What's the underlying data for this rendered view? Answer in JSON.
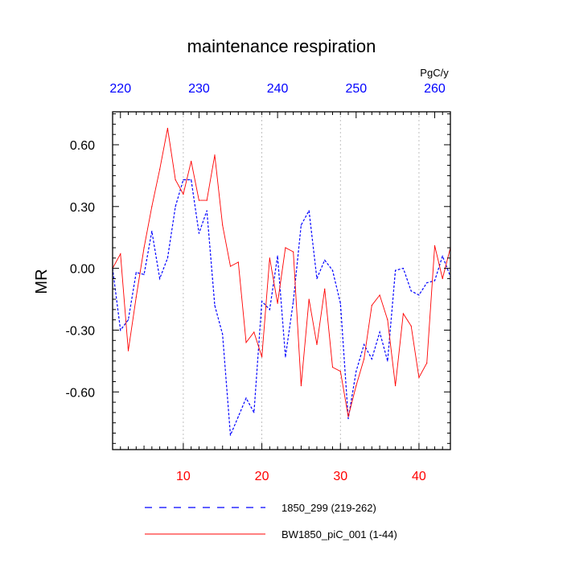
{
  "chart_data": {
    "type": "line",
    "title": "maintenance respiration",
    "ylabel": "MR",
    "units": "PgC/y",
    "xlim": [
      1,
      44
    ],
    "ylim": [
      -0.88,
      0.76
    ],
    "bottom_axis": {
      "ticks": [
        10,
        20,
        30,
        40
      ],
      "tick_labels": [
        "10",
        "20",
        "30",
        "40"
      ],
      "color": "#ff0000"
    },
    "top_axis": {
      "ticks": [
        220,
        230,
        240,
        250,
        260
      ],
      "tick_labels": [
        "220",
        "230",
        "240",
        "250",
        "260"
      ],
      "offset": 218,
      "color": "#0000ff"
    },
    "y_ticks": [
      0.6,
      0.3,
      0.0,
      -0.3,
      -0.6
    ],
    "y_tick_labels": [
      "0.60",
      "0.30",
      "0.00",
      "-0.30",
      "-0.60"
    ],
    "grid": "vertical dotted at major x ticks",
    "legend_position": "bottom",
    "series": [
      {
        "name": "1850_299 (219-262)",
        "color": "#0000ff",
        "dash": "dashed",
        "x": [
          1,
          2,
          3,
          4,
          5,
          6,
          7,
          8,
          9,
          10,
          11,
          12,
          13,
          14,
          15,
          16,
          17,
          18,
          19,
          20,
          21,
          22,
          23,
          24,
          25,
          26,
          27,
          28,
          29,
          30,
          31,
          32,
          33,
          34,
          35,
          36,
          37,
          38,
          39,
          40,
          41,
          42,
          43,
          44
        ],
        "y": [
          0.0,
          -0.3,
          -0.25,
          -0.02,
          -0.03,
          0.18,
          -0.05,
          0.05,
          0.3,
          0.43,
          0.43,
          0.17,
          0.28,
          -0.18,
          -0.32,
          -0.81,
          -0.72,
          -0.63,
          -0.7,
          -0.16,
          -0.2,
          0.06,
          -0.43,
          -0.16,
          0.21,
          0.28,
          -0.05,
          0.04,
          -0.01,
          -0.17,
          -0.73,
          -0.5,
          -0.37,
          -0.44,
          -0.31,
          -0.45,
          -0.01,
          0.0,
          -0.11,
          -0.13,
          -0.07,
          -0.06,
          0.06,
          -0.04
        ]
      },
      {
        "name": "BW1850_piC_001 (1-44)",
        "color": "#ff0000",
        "dash": "solid",
        "x": [
          1,
          2,
          3,
          4,
          5,
          6,
          7,
          8,
          9,
          10,
          11,
          12,
          13,
          14,
          15,
          16,
          17,
          18,
          19,
          20,
          21,
          22,
          23,
          24,
          25,
          26,
          27,
          28,
          29,
          30,
          31,
          32,
          33,
          34,
          35,
          36,
          37,
          38,
          39,
          40,
          41,
          42,
          43,
          44
        ],
        "y": [
          0.0,
          0.07,
          -0.4,
          -0.14,
          0.1,
          0.3,
          0.48,
          0.68,
          0.43,
          0.36,
          0.52,
          0.33,
          0.33,
          0.55,
          0.21,
          0.01,
          0.03,
          -0.36,
          -0.31,
          -0.43,
          0.05,
          -0.17,
          0.1,
          0.08,
          -0.57,
          -0.15,
          -0.37,
          -0.1,
          -0.48,
          -0.5,
          -0.72,
          -0.57,
          -0.44,
          -0.18,
          -0.13,
          -0.25,
          -0.57,
          -0.22,
          -0.28,
          -0.53,
          -0.46,
          0.11,
          -0.05,
          0.1
        ]
      }
    ]
  }
}
